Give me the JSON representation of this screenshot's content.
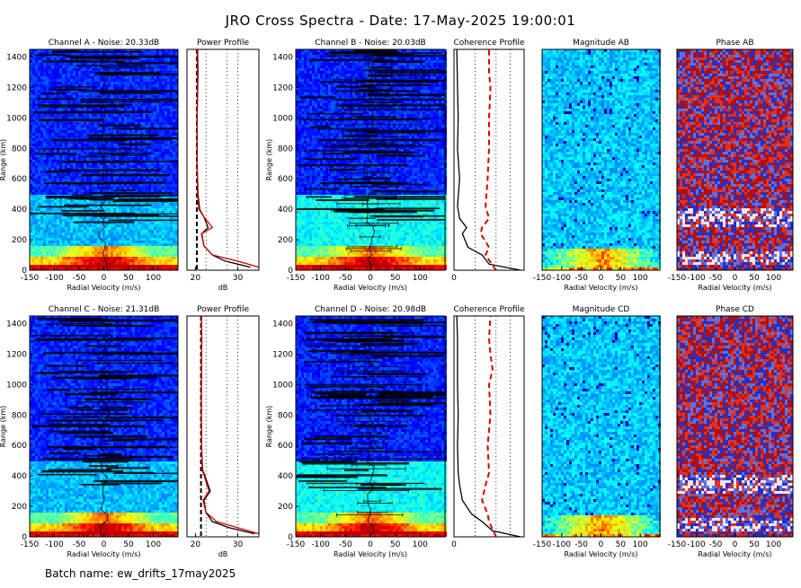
{
  "figure": {
    "title": "JRO Cross Spectra - Date: 17-May-2025 19:00:01",
    "batch_label": "Batch name: ew_drifts_17may2025"
  },
  "chart_data": [
    {
      "type": "heatmap",
      "id": "chA",
      "title": "Channel A - Noise: 20.33dB",
      "xlabel": "Radial Velocity (m/s)",
      "ylabel": "Range (km)",
      "xlim": [
        -150,
        150
      ],
      "ylim": [
        0,
        1450
      ],
      "xticks": [
        "-150",
        "-100",
        "-50",
        "0",
        "50",
        "100"
      ],
      "yticks": [
        "0",
        "200",
        "400",
        "600",
        "800",
        "1000",
        "1200",
        "1400"
      ],
      "colormap": "jet",
      "background_color": "#3038c8"
    },
    {
      "type": "line",
      "id": "powA",
      "title": "Power Profile",
      "xlabel": "dB",
      "ylabel": "",
      "xlim": [
        18,
        35
      ],
      "ylim": [
        0,
        1450
      ],
      "xticks": [
        "20",
        "30"
      ],
      "series": [
        {
          "color": "#000000",
          "x": [
            33,
            27,
            24,
            22,
            21.5,
            23,
            22,
            21,
            20.6,
            20.4,
            20.4,
            20.6,
            20.5
          ],
          "y": [
            20,
            60,
            100,
            160,
            240,
            280,
            350,
            400,
            500,
            700,
            1000,
            1300,
            1450
          ]
        },
        {
          "color": "#d00000",
          "x": [
            35,
            30,
            24,
            22,
            21.4,
            24,
            22,
            20.8,
            20.5,
            20.4,
            20.4,
            20.5,
            20.4
          ],
          "y": [
            20,
            60,
            100,
            160,
            240,
            280,
            350,
            400,
            500,
            700,
            1000,
            1300,
            1450
          ]
        }
      ],
      "noise_level": 20.33
    },
    {
      "type": "heatmap",
      "id": "chB",
      "title": "Channel B - Noise: 20.03dB",
      "xlabel": "Radial Velocity (m/s)",
      "ylabel": "Range (km)",
      "xlim": [
        -150,
        150
      ],
      "ylim": [
        0,
        1450
      ],
      "xticks": [
        "-150",
        "-100",
        "-50",
        "0",
        "50",
        "100"
      ],
      "yticks": [
        "0",
        "200",
        "400",
        "600",
        "800",
        "1000",
        "1200",
        "1400"
      ],
      "colormap": "jet",
      "background_color": "#3038c8"
    },
    {
      "type": "line",
      "id": "cohAB",
      "title": "Coherence Profile",
      "xlabel": "",
      "ylabel": "",
      "xlim": [
        0,
        1
      ],
      "ylim": [
        0,
        1450
      ],
      "xticks": [
        "0"
      ],
      "series": [
        {
          "color": "#000000",
          "style": "solid",
          "x": [
            0.95,
            0.5,
            0.4,
            0.2,
            0.12,
            0.18,
            0.08,
            0.05,
            0.08,
            0.05,
            0.06,
            0.05,
            0.04
          ],
          "y": [
            0,
            40,
            100,
            150,
            240,
            280,
            340,
            420,
            600,
            800,
            1000,
            1200,
            1450
          ]
        },
        {
          "color": "#e00000",
          "style": "dashed",
          "x": [
            0.6,
            0.45,
            0.5,
            0.38,
            0.4,
            0.5,
            0.45,
            0.48,
            0.5,
            0.5,
            0.52,
            0.5,
            0.5
          ],
          "y": [
            0,
            100,
            150,
            240,
            280,
            340,
            420,
            600,
            800,
            1000,
            1200,
            1300,
            1450
          ]
        }
      ]
    },
    {
      "type": "heatmap",
      "id": "magAB",
      "title": "Magnitude AB",
      "xlabel": "Radial Velocity (m/s)",
      "ylabel": "",
      "xlim": [
        -150,
        150
      ],
      "ylim": [
        0,
        1450
      ],
      "xticks": [
        "-150",
        "-100",
        "-50",
        "0",
        "50",
        "100"
      ],
      "colormap": "jet",
      "background_color": "#6a78e8"
    },
    {
      "type": "heatmap",
      "id": "phaAB",
      "title": "Phase AB",
      "xlabel": "Radial Velocity (m/s)",
      "ylabel": "",
      "xlim": [
        -150,
        150
      ],
      "ylim": [
        0,
        1450
      ],
      "xticks": [
        "-150",
        "-100",
        "-50",
        "0",
        "50",
        "100"
      ],
      "colormap": "red-white-blue"
    },
    {
      "type": "heatmap",
      "id": "chC",
      "title": "Channel C - Noise: 21.31dB",
      "xlabel": "Radial Velocity (m/s)",
      "ylabel": "Range (km)",
      "xlim": [
        -150,
        150
      ],
      "ylim": [
        0,
        1450
      ],
      "xticks": [
        "-150",
        "-100",
        "-50",
        "0",
        "50",
        "100"
      ],
      "yticks": [
        "0",
        "200",
        "400",
        "600",
        "800",
        "1000",
        "1200",
        "1400"
      ],
      "colormap": "jet",
      "background_color": "#3038c8"
    },
    {
      "type": "line",
      "id": "powC",
      "title": "Power Profile",
      "xlabel": "dB",
      "ylabel": "",
      "xlim": [
        18,
        35
      ],
      "ylim": [
        0,
        1450
      ],
      "xticks": [
        "20",
        "30"
      ],
      "series": [
        {
          "color": "#000000",
          "x": [
            34,
            28,
            24,
            22.5,
            22,
            23.5,
            22.5,
            21.7,
            21.5,
            21.4,
            21.4,
            21.5,
            21.4
          ],
          "y": [
            20,
            60,
            100,
            160,
            240,
            300,
            380,
            440,
            550,
            750,
            1000,
            1300,
            1450
          ]
        },
        {
          "color": "#d00000",
          "x": [
            35,
            30,
            25,
            22.5,
            21.8,
            23.2,
            22.3,
            21.6,
            21.5,
            21.4,
            21.4,
            21.5,
            21.4
          ],
          "y": [
            20,
            60,
            100,
            160,
            240,
            300,
            380,
            440,
            550,
            750,
            1000,
            1300,
            1450
          ]
        }
      ],
      "noise_level": 21.31
    },
    {
      "type": "heatmap",
      "id": "chD",
      "title": "Channel D - Noise: 20.98dB",
      "xlabel": "Radial Velocity (m/s)",
      "ylabel": "Range (km)",
      "xlim": [
        -150,
        150
      ],
      "ylim": [
        0,
        1450
      ],
      "xticks": [
        "-150",
        "-100",
        "-50",
        "0",
        "50",
        "100"
      ],
      "yticks": [
        "0",
        "200",
        "400",
        "600",
        "800",
        "1000",
        "1200",
        "1400"
      ],
      "colormap": "jet",
      "background_color": "#3038c8"
    },
    {
      "type": "line",
      "id": "cohCD",
      "title": "Coherence Profile",
      "xlabel": "",
      "ylabel": "",
      "xlim": [
        0,
        1
      ],
      "ylim": [
        0,
        1450
      ],
      "xticks": [
        "0"
      ],
      "series": [
        {
          "color": "#000000",
          "style": "solid",
          "x": [
            0.95,
            0.55,
            0.4,
            0.25,
            0.12,
            0.08,
            0.06,
            0.05,
            0.06,
            0.05,
            0.05,
            0.05,
            0.04
          ],
          "y": [
            0,
            40,
            100,
            150,
            240,
            340,
            420,
            600,
            800,
            1000,
            1200,
            1300,
            1450
          ]
        },
        {
          "color": "#e00000",
          "style": "dashed",
          "x": [
            0.6,
            0.5,
            0.48,
            0.4,
            0.45,
            0.5,
            0.48,
            0.52,
            0.5,
            0.55,
            0.52,
            0.5,
            0.52
          ],
          "y": [
            0,
            100,
            150,
            240,
            340,
            420,
            600,
            800,
            1000,
            1100,
            1200,
            1300,
            1450
          ]
        }
      ]
    },
    {
      "type": "heatmap",
      "id": "magCD",
      "title": "Magnitude CD",
      "xlabel": "Radial Velocity (m/s)",
      "ylabel": "",
      "xlim": [
        -150,
        150
      ],
      "ylim": [
        0,
        1450
      ],
      "xticks": [
        "-150",
        "-100",
        "-50",
        "0",
        "50",
        "100"
      ],
      "colormap": "jet",
      "background_color": "#6a78e8"
    },
    {
      "type": "heatmap",
      "id": "phaCD",
      "title": "Phase CD",
      "xlabel": "Radial Velocity (m/s)",
      "ylabel": "",
      "xlim": [
        -150,
        150
      ],
      "ylim": [
        0,
        1450
      ],
      "xticks": [
        "-150",
        "-100",
        "-50",
        "0",
        "50",
        "100"
      ],
      "colormap": "red-white-blue"
    }
  ]
}
